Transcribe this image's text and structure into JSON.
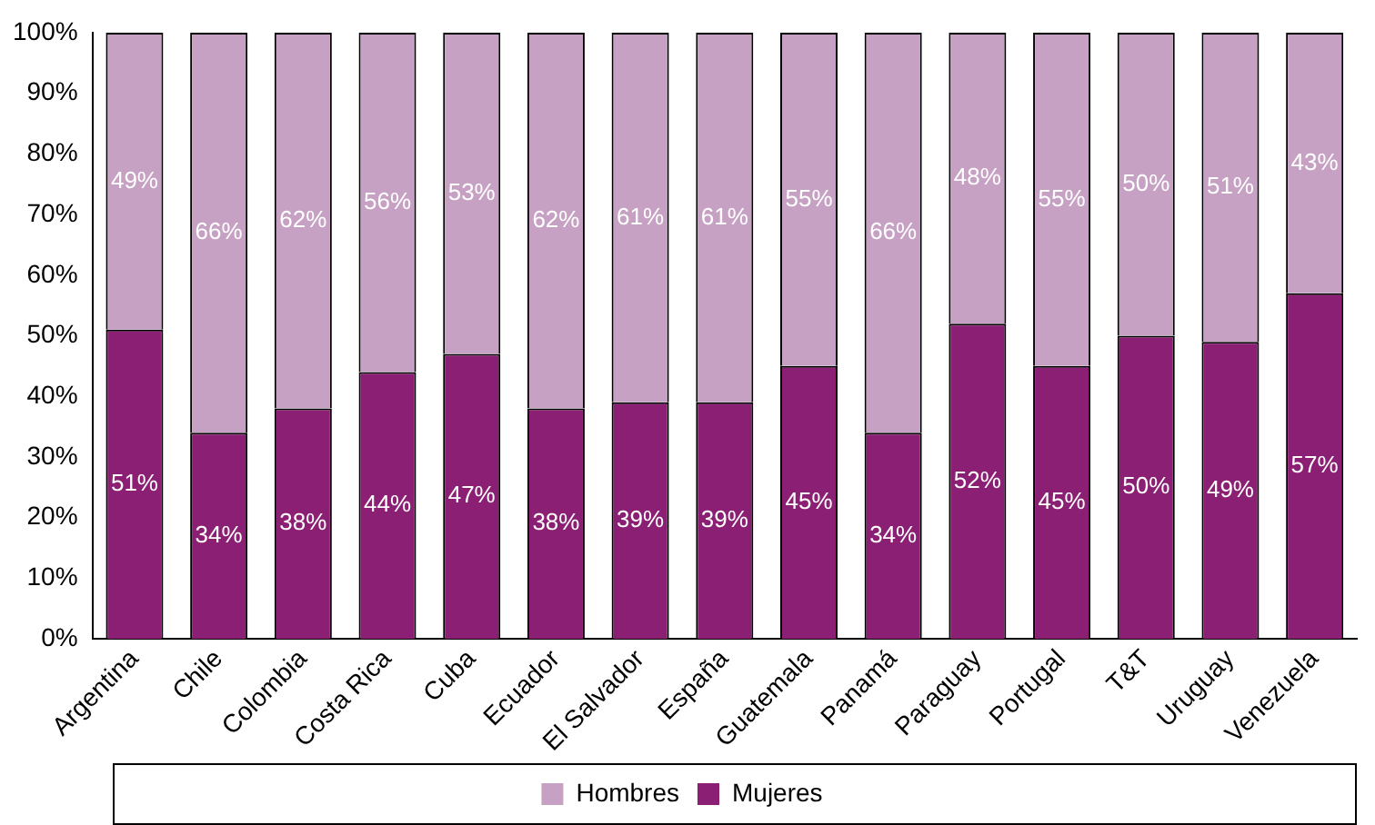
{
  "chart_data": {
    "type": "bar",
    "stacked": true,
    "categories": [
      "Argentina",
      "Chile",
      "Colombia",
      "Costa Rica",
      "Cuba",
      "Ecuador",
      "El Salvador",
      "España",
      "Guatemala",
      "Panamá",
      "Paraguay",
      "Portugal",
      "T&T",
      "Uruguay",
      "Venezuela"
    ],
    "series": [
      {
        "name": "Mujeres",
        "color": "#8b1f74",
        "values": [
          51,
          34,
          38,
          44,
          47,
          38,
          39,
          39,
          45,
          34,
          52,
          45,
          50,
          49,
          57
        ],
        "value_labels": [
          "51%",
          "34%",
          "38%",
          "44%",
          "47%",
          "38%",
          "39%",
          "39%",
          "45%",
          "34%",
          "52%",
          "45%",
          "50%",
          "49%",
          "57%"
        ]
      },
      {
        "name": "Hombres",
        "color": "#c7a1c3",
        "values": [
          49,
          66,
          62,
          56,
          53,
          62,
          61,
          61,
          55,
          66,
          48,
          55,
          50,
          51,
          43
        ],
        "value_labels": [
          "49%",
          "66%",
          "62%",
          "56%",
          "53%",
          "62%",
          "61%",
          "61%",
          "55%",
          "66%",
          "48%",
          "55%",
          "50%",
          "51%",
          "43%"
        ]
      }
    ],
    "ylim": [
      0,
      100
    ],
    "yticks": [
      {
        "value": 0,
        "label": "0%"
      },
      {
        "value": 10,
        "label": "10%"
      },
      {
        "value": 20,
        "label": "20%"
      },
      {
        "value": 30,
        "label": "30%"
      },
      {
        "value": 40,
        "label": "40%"
      },
      {
        "value": 50,
        "label": "50%"
      },
      {
        "value": 60,
        "label": "60%"
      },
      {
        "value": 70,
        "label": "70%"
      },
      {
        "value": 80,
        "label": "80%"
      },
      {
        "value": 90,
        "label": "90%"
      },
      {
        "value": 100,
        "label": "100%"
      }
    ],
    "grid": false,
    "legend": "bottom"
  }
}
